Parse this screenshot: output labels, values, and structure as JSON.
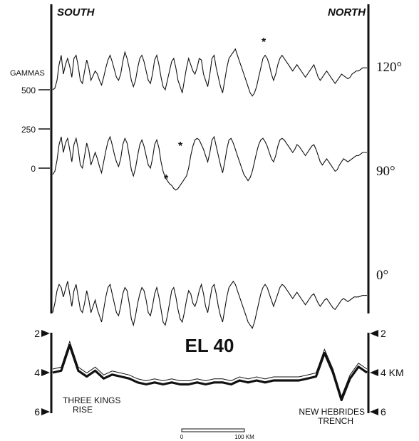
{
  "header": {
    "left": "SOUTH",
    "right": "NORTH"
  },
  "magnetics": {
    "unit_label": "GAMMAS",
    "scale_ticks": [
      "500",
      "250",
      "0"
    ],
    "profiles": [
      {
        "angle": "120°"
      },
      {
        "angle": "90°"
      },
      {
        "angle": "0°"
      }
    ]
  },
  "bathymetry": {
    "title": "EL 40",
    "left_ticks": [
      "2",
      "4",
      "6"
    ],
    "right_ticks": [
      "2",
      "4 KM",
      "6"
    ],
    "left_feature": [
      "THREE KINGS",
      "RISE"
    ],
    "right_feature": [
      "NEW HEBRIDES",
      "TRENCH"
    ]
  },
  "scale_bar": {
    "start": "0",
    "end": "100 KM"
  },
  "colors": {
    "ink": "#111111",
    "paper": "#ffffff"
  },
  "chart_data": {
    "type": "line",
    "title": "EL 40",
    "xlabel": "",
    "ylabel": "GAMMAS",
    "y_ticks_magnetic": [
      500,
      250,
      0
    ],
    "y_ticks_depth_km": [
      2,
      4,
      6
    ],
    "x": [
      0,
      3,
      6,
      9,
      12,
      15,
      18,
      21,
      24,
      27,
      30,
      33,
      36,
      39,
      42,
      45,
      48,
      51,
      54,
      57,
      60,
      63,
      66,
      69,
      72,
      75,
      78,
      81,
      84,
      87,
      90,
      93,
      96,
      99,
      102,
      105,
      108,
      111,
      114,
      117,
      120,
      123,
      126,
      129,
      132,
      135,
      138,
      141,
      144,
      147,
      150,
      153,
      156,
      159,
      162,
      165,
      168,
      171,
      174,
      177,
      180,
      183,
      186,
      189,
      192,
      195,
      198,
      201,
      204,
      207,
      210,
      213,
      216,
      219,
      222,
      225,
      228,
      231,
      234,
      237,
      240,
      243,
      246,
      249,
      252,
      255,
      258,
      261,
      264,
      267,
      270,
      273,
      276,
      279,
      282,
      285,
      288,
      291,
      294,
      297,
      300,
      303,
      306,
      309,
      312,
      315,
      318,
      321,
      324,
      327,
      330,
      333,
      336,
      339,
      342,
      345,
      348,
      351,
      354,
      357,
      360,
      363,
      366,
      369,
      372,
      375,
      378,
      381,
      384,
      387,
      390,
      393,
      396,
      399,
      402,
      405,
      408,
      411,
      414,
      417,
      420,
      423,
      426,
      429,
      432,
      435,
      438,
      441,
      444
    ],
    "series": [
      {
        "name": "120°",
        "values": [
          500,
          510,
          560,
          660,
          720,
          600,
          660,
          700,
          650,
          580,
          700,
          720,
          650,
          560,
          540,
          620,
          690,
          640,
          560,
          590,
          620,
          600,
          560,
          530,
          580,
          640,
          690,
          720,
          680,
          630,
          580,
          560,
          600,
          680,
          740,
          700,
          640,
          560,
          520,
          560,
          640,
          700,
          720,
          680,
          620,
          560,
          540,
          600,
          690,
          720,
          660,
          580,
          520,
          500,
          560,
          620,
          680,
          700,
          640,
          560,
          520,
          480,
          560,
          640,
          700,
          660,
          620,
          600,
          640,
          700,
          690,
          600,
          560,
          520,
          600,
          700,
          720,
          640,
          580,
          520,
          480,
          560,
          640,
          700,
          720,
          740,
          760,
          720,
          680,
          640,
          600,
          560,
          520,
          480,
          460,
          480,
          520,
          580,
          640,
          700,
          720,
          700,
          660,
          600,
          560,
          600,
          660,
          700,
          720,
          700,
          680,
          660,
          640,
          620,
          640,
          660,
          640,
          620,
          600,
          580,
          600,
          620,
          640,
          660,
          620,
          580,
          560,
          580,
          600,
          620,
          600,
          580,
          560,
          540,
          560,
          580,
          600,
          590,
          580,
          570,
          580,
          600,
          610,
          620,
          620,
          630,
          640,
          640,
          640
        ]
      },
      {
        "name": "90°",
        "values": [
          -40,
          -20,
          50,
          150,
          200,
          100,
          160,
          190,
          120,
          40,
          150,
          190,
          120,
          20,
          0,
          80,
          160,
          110,
          20,
          60,
          100,
          60,
          10,
          -30,
          40,
          110,
          170,
          200,
          150,
          90,
          40,
          10,
          60,
          150,
          190,
          160,
          80,
          -10,
          -50,
          0,
          80,
          150,
          180,
          140,
          80,
          20,
          0,
          60,
          150,
          180,
          130,
          40,
          -20,
          -60,
          -80,
          -100,
          -110,
          -130,
          -140,
          -130,
          -110,
          -90,
          -70,
          -50,
          0,
          80,
          140,
          180,
          190,
          180,
          150,
          120,
          80,
          40,
          100,
          180,
          200,
          140,
          80,
          20,
          -30,
          40,
          120,
          180,
          190,
          160,
          120,
          80,
          40,
          0,
          -40,
          -60,
          -80,
          -60,
          -20,
          40,
          100,
          150,
          180,
          190,
          170,
          140,
          100,
          60,
          40,
          80,
          140,
          180,
          190,
          180,
          160,
          140,
          120,
          100,
          120,
          150,
          140,
          120,
          100,
          80,
          100,
          120,
          140,
          150,
          120,
          80,
          40,
          20,
          40,
          60,
          40,
          20,
          0,
          -20,
          -10,
          20,
          40,
          60,
          50,
          40,
          50,
          60,
          70,
          80,
          80,
          90,
          100,
          100,
          100
        ]
      },
      {
        "name": "0°",
        "values": [
          -240,
          -180,
          -100,
          -60,
          -80,
          -140,
          -90,
          -40,
          -120,
          -200,
          -100,
          -60,
          -140,
          -220,
          -240,
          -180,
          -100,
          -160,
          -240,
          -200,
          -160,
          -220,
          -260,
          -300,
          -220,
          -140,
          -80,
          -60,
          -120,
          -180,
          -240,
          -260,
          -200,
          -120,
          -80,
          -100,
          -180,
          -280,
          -320,
          -260,
          -180,
          -120,
          -80,
          -100,
          -160,
          -240,
          -260,
          -200,
          -120,
          -80,
          -140,
          -220,
          -300,
          -320,
          -260,
          -180,
          -100,
          -80,
          -140,
          -220,
          -280,
          -300,
          -240,
          -160,
          -100,
          -120,
          -180,
          -200,
          -160,
          -100,
          -60,
          -120,
          -200,
          -240,
          -160,
          -80,
          -60,
          -120,
          -200,
          -260,
          -300,
          -220,
          -140,
          -80,
          -60,
          -40,
          -60,
          -100,
          -140,
          -180,
          -220,
          -260,
          -300,
          -320,
          -340,
          -300,
          -240,
          -180,
          -120,
          -80,
          -60,
          -80,
          -120,
          -160,
          -200,
          -160,
          -120,
          -80,
          -60,
          -70,
          -90,
          -110,
          -130,
          -150,
          -130,
          -110,
          -130,
          -150,
          -170,
          -190,
          -170,
          -150,
          -130,
          -120,
          -150,
          -180,
          -200,
          -180,
          -160,
          -150,
          -170,
          -190,
          -210,
          -220,
          -200,
          -180,
          -160,
          -150,
          -160,
          -170,
          -160,
          -150,
          -140,
          -140,
          -140,
          -135,
          -130,
          -130,
          -130
        ]
      }
    ],
    "bathymetry": {
      "ylabel": "KM",
      "ylim": [
        6,
        2
      ],
      "x": [
        0,
        12,
        24,
        36,
        48,
        60,
        72,
        84,
        96,
        108,
        120,
        132,
        144,
        156,
        168,
        180,
        192,
        204,
        216,
        228,
        240,
        252,
        264,
        276,
        288,
        300,
        312,
        324,
        336,
        348,
        360,
        372,
        384,
        396,
        408,
        420,
        432,
        444
      ],
      "depth_km": [
        4.0,
        3.9,
        2.6,
        3.9,
        4.2,
        3.9,
        4.3,
        4.1,
        4.2,
        4.3,
        4.5,
        4.6,
        4.5,
        4.6,
        4.5,
        4.6,
        4.6,
        4.5,
        4.6,
        4.5,
        4.5,
        4.6,
        4.4,
        4.5,
        4.4,
        4.5,
        4.4,
        4.4,
        4.4,
        4.4,
        4.3,
        4.2,
        3.0,
        4.0,
        5.4,
        4.3,
        3.7,
        4.0
      ]
    }
  }
}
